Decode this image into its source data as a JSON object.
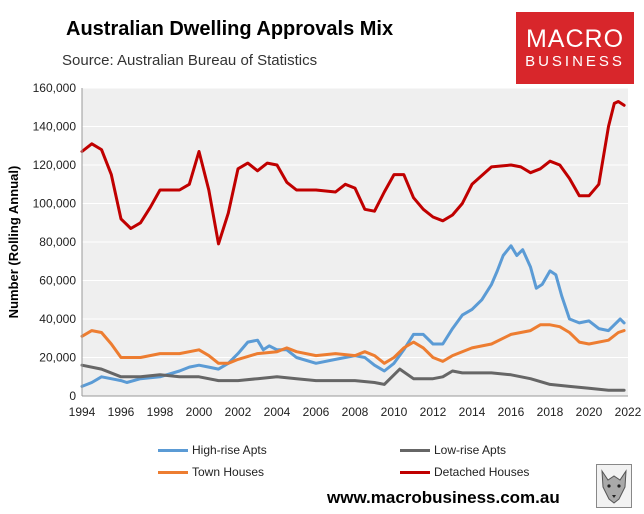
{
  "header": {
    "title": "Australian Dwelling Approvals Mix",
    "subtitle": "Source: Australian Bureau of Statistics"
  },
  "logo": {
    "line1": "MACRO",
    "line2": "BUSINESS"
  },
  "footer": {
    "url": "www.macrobusiness.com.au"
  },
  "colors": {
    "high_rise": "#5b9bd5",
    "low_rise": "#666666",
    "town_houses": "#ed7d31",
    "detached": "#c00000",
    "plot_bg": "#efefef",
    "brand": "#d8262b"
  },
  "chart_data": {
    "type": "line",
    "title": "Australian Dwelling Approvals Mix",
    "xlabel": "",
    "ylabel": "Number (Rolling Annual)",
    "xlim": [
      1994,
      2022
    ],
    "ylim": [
      0,
      160000
    ],
    "xticks": [
      1994,
      1996,
      1998,
      2000,
      2002,
      2004,
      2006,
      2008,
      2010,
      2012,
      2014,
      2016,
      2018,
      2020,
      2022
    ],
    "yticks": [
      0,
      20000,
      40000,
      60000,
      80000,
      100000,
      120000,
      140000,
      160000
    ],
    "ytick_labels": [
      "0",
      "20,000",
      "40,000",
      "60,000",
      "80,000",
      "100,000",
      "120,000",
      "140,000",
      "160,000"
    ],
    "legend_position": "bottom",
    "series": [
      {
        "name": "High-rise Apts",
        "color": "#5b9bd5",
        "x": [
          1994,
          1994.5,
          1995,
          1996,
          1996.3,
          1997,
          1998,
          1999,
          1999.5,
          2000,
          2000.5,
          2001,
          2001.5,
          2002,
          2002.5,
          2003,
          2003.3,
          2003.6,
          2004,
          2004.5,
          2005,
          2006,
          2007,
          2008,
          2008.5,
          2009,
          2009.5,
          2010,
          2010.5,
          2011,
          2011.5,
          2012,
          2012.5,
          2013,
          2013.5,
          2014,
          2014.5,
          2015,
          2015.3,
          2015.6,
          2016,
          2016.3,
          2016.6,
          2017,
          2017.3,
          2017.6,
          2018,
          2018.3,
          2018.6,
          2019,
          2019.5,
          2020,
          2020.5,
          2021,
          2021.3,
          2021.6,
          2021.8
        ],
        "y": [
          5000,
          7000,
          10000,
          8000,
          7000,
          9000,
          10000,
          13000,
          15000,
          16000,
          15000,
          14000,
          17000,
          22000,
          28000,
          29000,
          24000,
          26000,
          24000,
          24000,
          20000,
          17000,
          19000,
          21000,
          20000,
          16000,
          13000,
          17000,
          24000,
          32000,
          32000,
          27000,
          27000,
          35000,
          42000,
          45000,
          50000,
          58000,
          65000,
          73000,
          78000,
          73000,
          76000,
          67000,
          56000,
          58000,
          65000,
          63000,
          52000,
          40000,
          38000,
          39000,
          35000,
          34000,
          37000,
          40000,
          38000
        ]
      },
      {
        "name": "Low-rise Apts",
        "color": "#666666",
        "x": [
          1994,
          1995,
          1996,
          1997,
          1998,
          1999,
          2000,
          2001,
          2002,
          2003,
          2004,
          2005,
          2006,
          2007,
          2008,
          2009,
          2009.5,
          2010,
          2010.3,
          2011,
          2012,
          2012.5,
          2013,
          2013.5,
          2014,
          2015,
          2016,
          2017,
          2018,
          2019,
          2020,
          2021,
          2021.8
        ],
        "y": [
          16000,
          14000,
          10000,
          10000,
          11000,
          10000,
          10000,
          8000,
          8000,
          9000,
          10000,
          9000,
          8000,
          8000,
          8000,
          7000,
          6000,
          11000,
          14000,
          9000,
          9000,
          10000,
          13000,
          12000,
          12000,
          12000,
          11000,
          9000,
          6000,
          5000,
          4000,
          3000,
          3000
        ]
      },
      {
        "name": "Town Houses",
        "color": "#ed7d31",
        "x": [
          1994,
          1994.5,
          1995,
          1995.5,
          1996,
          1997,
          1998,
          1999,
          2000,
          2000.5,
          2001,
          2001.5,
          2002,
          2003,
          2004,
          2004.5,
          2005,
          2006,
          2007,
          2008,
          2008.5,
          2009,
          2009.5,
          2010,
          2010.5,
          2011,
          2011.5,
          2012,
          2012.5,
          2013,
          2014,
          2015,
          2016,
          2017,
          2017.5,
          2018,
          2018.5,
          2019,
          2019.5,
          2020,
          2021,
          2021.5,
          2021.8
        ],
        "y": [
          31000,
          34000,
          33000,
          27000,
          20000,
          20000,
          22000,
          22000,
          24000,
          21000,
          17000,
          17000,
          19000,
          22000,
          23000,
          25000,
          23000,
          21000,
          22000,
          21000,
          23000,
          21000,
          17000,
          20000,
          25000,
          28000,
          25000,
          20000,
          18000,
          21000,
          25000,
          27000,
          32000,
          34000,
          37000,
          37000,
          36000,
          33000,
          28000,
          27000,
          29000,
          33000,
          34000
        ]
      },
      {
        "name": "Detached Houses",
        "color": "#c00000",
        "x": [
          1994,
          1994.5,
          1995,
          1995.5,
          1996,
          1996.5,
          1997,
          1997.5,
          1998,
          1999,
          1999.5,
          2000,
          2000.5,
          2001,
          2001.5,
          2002,
          2002.5,
          2003,
          2003.5,
          2004,
          2004.5,
          2005,
          2006,
          2007,
          2007.5,
          2008,
          2008.5,
          2009,
          2009.5,
          2010,
          2010.5,
          2011,
          2011.5,
          2012,
          2012.5,
          2013,
          2013.5,
          2014,
          2015,
          2016,
          2016.5,
          2017,
          2017.5,
          2018,
          2018.5,
          2019,
          2019.5,
          2020,
          2020.5,
          2021,
          2021.3,
          2021.5,
          2021.8
        ],
        "y": [
          127000,
          131000,
          128000,
          115000,
          92000,
          87000,
          90000,
          98000,
          107000,
          107000,
          110000,
          127000,
          107000,
          79000,
          95000,
          118000,
          121000,
          117000,
          121000,
          120000,
          111000,
          107000,
          107000,
          106000,
          110000,
          108000,
          97000,
          96000,
          106000,
          115000,
          115000,
          103000,
          97000,
          93000,
          91000,
          94000,
          100000,
          110000,
          119000,
          120000,
          119000,
          116000,
          118000,
          122000,
          120000,
          113000,
          104000,
          104000,
          110000,
          140000,
          152000,
          153000,
          151000
        ]
      }
    ]
  }
}
